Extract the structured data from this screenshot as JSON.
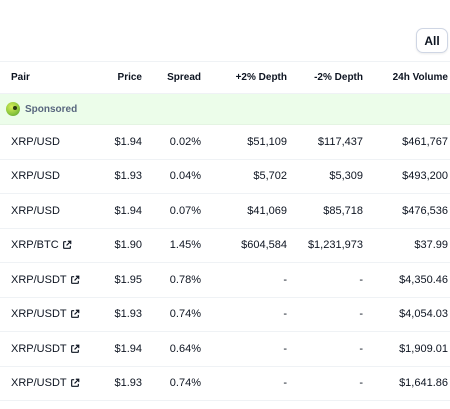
{
  "filter": {
    "label": "All"
  },
  "table": {
    "headers": {
      "pair": "Pair",
      "price": "Price",
      "spread": "Spread",
      "plus_depth": "+2% Depth",
      "minus_depth": "-2% Depth",
      "volume": "24h Volume"
    },
    "sponsored_label": "Sponsored",
    "rows": [
      {
        "pair": "XRP/USD",
        "price": "$1.94",
        "spread": "0.02%",
        "plus_depth": "$51,109",
        "minus_depth": "$117,437",
        "volume": "$461,767"
      },
      {
        "pair": "XRP/USD",
        "price": "$1.93",
        "spread": "0.04%",
        "plus_depth": "$5,702",
        "minus_depth": "$5,309",
        "volume": "$493,200"
      },
      {
        "pair": "XRP/USD",
        "price": "$1.94",
        "spread": "0.07%",
        "plus_depth": "$41,069",
        "minus_depth": "$85,718",
        "volume": "$476,536"
      },
      {
        "pair": "XRP/BTC",
        "price": "$1.90",
        "spread": "1.45%",
        "plus_depth": "$604,584",
        "minus_depth": "$1,231,973",
        "volume": "$37.99"
      },
      {
        "pair": "XRP/USDT",
        "price": "$1.95",
        "spread": "0.78%",
        "plus_depth": "-",
        "minus_depth": "-",
        "volume": "$4,350.46"
      },
      {
        "pair": "XRP/USDT",
        "price": "$1.93",
        "spread": "0.74%",
        "plus_depth": "-",
        "minus_depth": "-",
        "volume": "$4,054.03"
      },
      {
        "pair": "XRP/USDT",
        "price": "$1.94",
        "spread": "0.64%",
        "plus_depth": "-",
        "minus_depth": "-",
        "volume": "$1,909.01"
      },
      {
        "pair": "XRP/USDT",
        "price": "$1.93",
        "spread": "0.74%",
        "plus_depth": "-",
        "minus_depth": "-",
        "volume": "$1,641.86"
      }
    ],
    "external_link_icon": "external-link-icon"
  }
}
